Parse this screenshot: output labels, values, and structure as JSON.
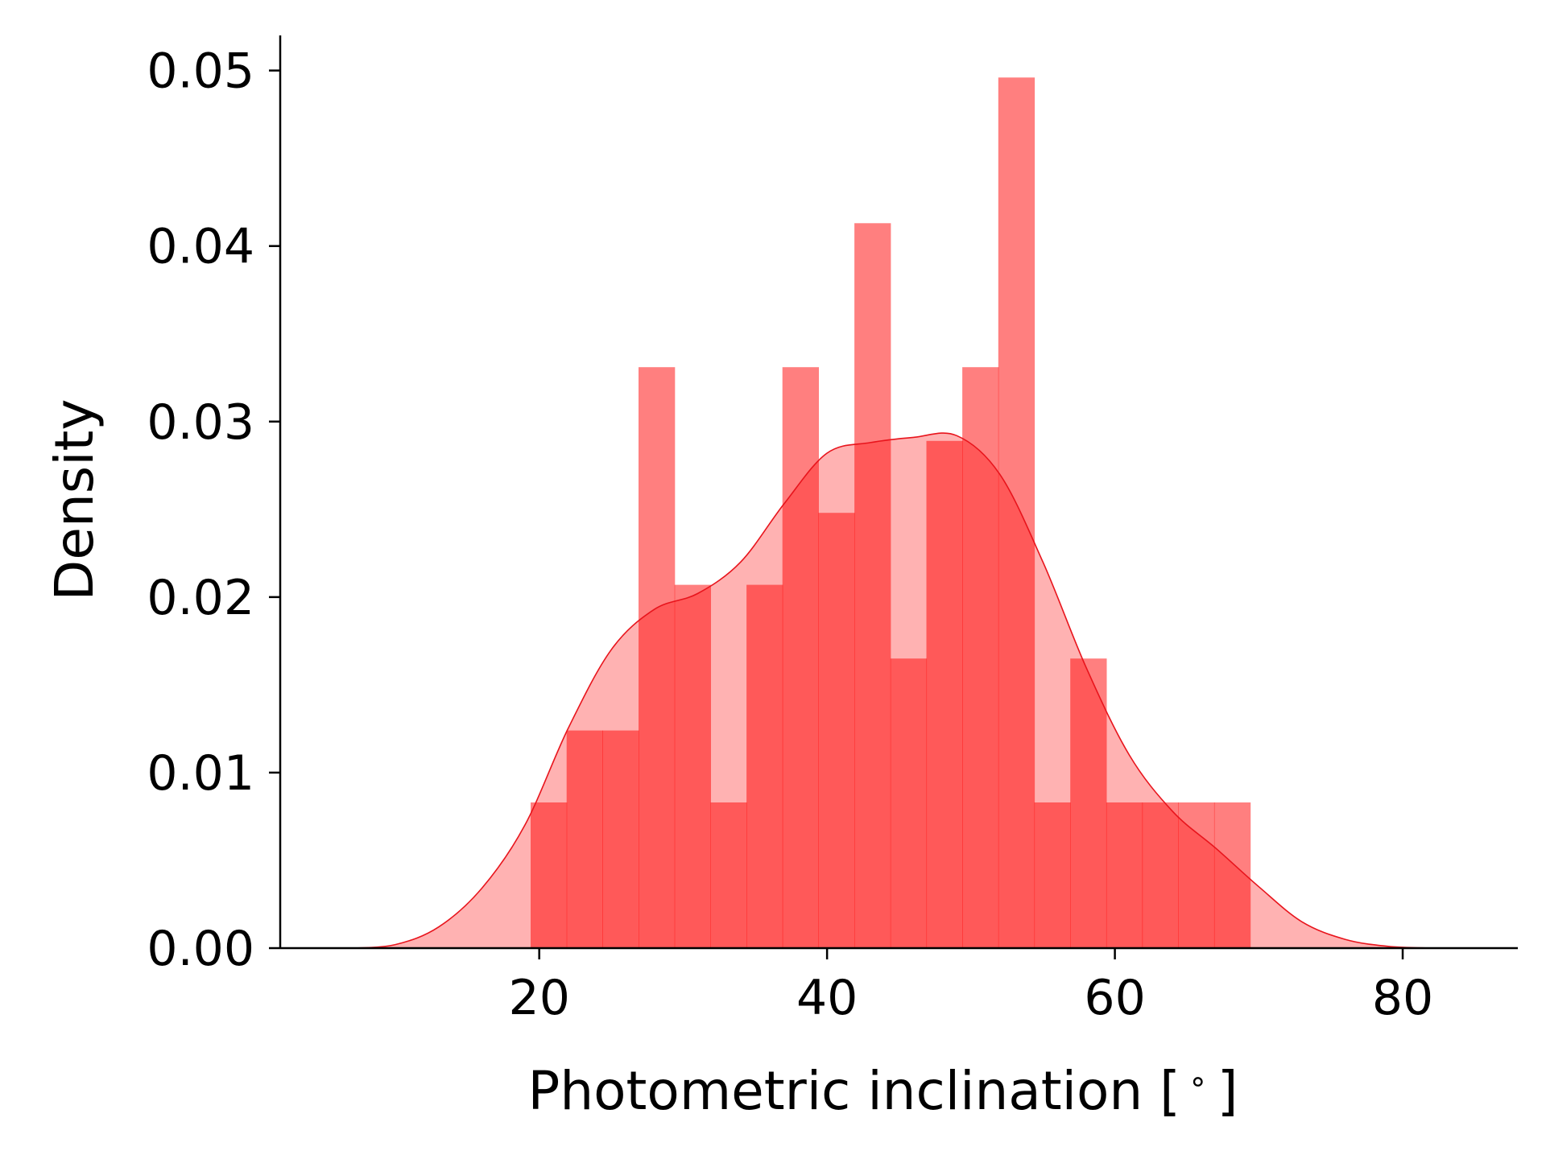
{
  "chart_data": {
    "type": "bar",
    "subtype": "histogram with kde",
    "xlabel": "Photometric inclination [$^\\circ$]",
    "xlabel_display": [
      "Photometric inclination [",
      "∘",
      "]"
    ],
    "ylabel": "Density",
    "xlim": [
      2,
      88
    ],
    "ylim": [
      0,
      0.052
    ],
    "xticks": [
      20,
      40,
      60,
      80
    ],
    "xtick_labels": [
      "20",
      "40",
      "60",
      "80"
    ],
    "yticks": [
      0.0,
      0.01,
      0.02,
      0.03,
      0.04,
      0.05
    ],
    "ytick_labels": [
      "0.00",
      "0.01",
      "0.02",
      "0.03",
      "0.04",
      "0.05"
    ],
    "grid": false,
    "spines": [
      "left",
      "bottom"
    ],
    "colors": {
      "histogram": "#ff0000",
      "kde_line": "#e8141c"
    },
    "histogram_alpha": 0.5,
    "kde_fill_alpha": 0.3,
    "bin_edges": [
      19.4,
      21.9,
      24.4,
      26.9,
      29.4,
      31.9,
      34.4,
      36.9,
      39.4,
      41.9,
      44.4,
      46.9,
      49.4,
      51.9,
      54.4,
      56.9,
      59.4,
      61.9,
      64.4,
      66.9,
      69.4
    ],
    "bin_values": [
      0.0083,
      0.0124,
      0.0124,
      0.0331,
      0.0207,
      0.0083,
      0.0207,
      0.0331,
      0.0248,
      0.0413,
      0.0165,
      0.0289,
      0.0331,
      0.0496,
      0.0083,
      0.0165,
      0.0083,
      0.0083,
      0.0083,
      0.0083
    ],
    "kde": {
      "x": [
        7,
        10,
        13,
        16,
        19,
        22,
        25,
        28,
        31,
        34,
        37,
        40,
        43,
        46,
        49,
        52,
        55,
        58,
        61,
        64,
        67,
        70,
        73,
        76,
        79,
        82
      ],
      "y": [
        0.0,
        0.0002,
        0.0012,
        0.0034,
        0.007,
        0.0125,
        0.017,
        0.0193,
        0.0202,
        0.022,
        0.0253,
        0.0282,
        0.0288,
        0.0291,
        0.0292,
        0.027,
        0.022,
        0.016,
        0.011,
        0.0078,
        0.0057,
        0.0035,
        0.0015,
        0.0005,
        0.0001,
        0.0
      ]
    }
  }
}
